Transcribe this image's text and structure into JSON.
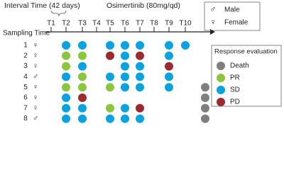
{
  "header": {
    "interval": "Interval Time (42 days)",
    "drug": "Osimertinib (80mg/qd)",
    "axis_label": "Sampling Time"
  },
  "times": [
    "T1",
    "T2",
    "T3",
    "T4",
    "T5",
    "T6",
    "T7",
    "T8",
    "T9",
    "T10"
  ],
  "sex_legend": [
    {
      "symbol": "♂",
      "label": "Male"
    },
    {
      "symbol": "♀",
      "label": "Female"
    }
  ],
  "response_legend": {
    "title": "Response evaluation",
    "items": [
      {
        "label": "Death",
        "color": "#7f7f7f"
      },
      {
        "label": "PR",
        "color": "#8cc63f"
      },
      {
        "label": "SD",
        "color": "#0aa3e0"
      },
      {
        "label": "PD",
        "color": "#9b2b30"
      }
    ]
  },
  "rows": [
    {
      "id": "1",
      "sex": "♀",
      "cells": [
        null,
        "SD",
        "SD",
        null,
        "SD",
        "SD",
        "SD",
        null,
        "SD",
        "SD"
      ],
      "death": false
    },
    {
      "id": "2",
      "sex": "♀",
      "cells": [
        null,
        "PR",
        "PR",
        null,
        "PD",
        "SD",
        "PD",
        null,
        "SD",
        null
      ],
      "death": false
    },
    {
      "id": "3",
      "sex": "♀",
      "cells": [
        null,
        "PR",
        "SD",
        null,
        null,
        "SD",
        "SD",
        null,
        "PD",
        null
      ],
      "death": false
    },
    {
      "id": "4",
      "sex": "♂",
      "cells": [
        null,
        "SD",
        "PR",
        null,
        "SD",
        "SD",
        "SD",
        null,
        "SD",
        null
      ],
      "death": false
    },
    {
      "id": "5",
      "sex": "♀",
      "cells": [
        null,
        "PR",
        "PR",
        null,
        "PR",
        "SD",
        "SD",
        null,
        "SD",
        null
      ],
      "death": true
    },
    {
      "id": "6",
      "sex": "♀",
      "cells": [
        null,
        "SD",
        "PD",
        null,
        null,
        null,
        null,
        null,
        null,
        null
      ],
      "death": true
    },
    {
      "id": "7",
      "sex": "♀",
      "cells": [
        null,
        "SD",
        "SD",
        null,
        "PR",
        "SD",
        "PD",
        null,
        null,
        null
      ],
      "death": true
    },
    {
      "id": "8",
      "sex": "♂",
      "cells": [
        null,
        "SD",
        "SD",
        null,
        "SD",
        "SD",
        "SD",
        null,
        null,
        null
      ],
      "death": true
    }
  ]
}
